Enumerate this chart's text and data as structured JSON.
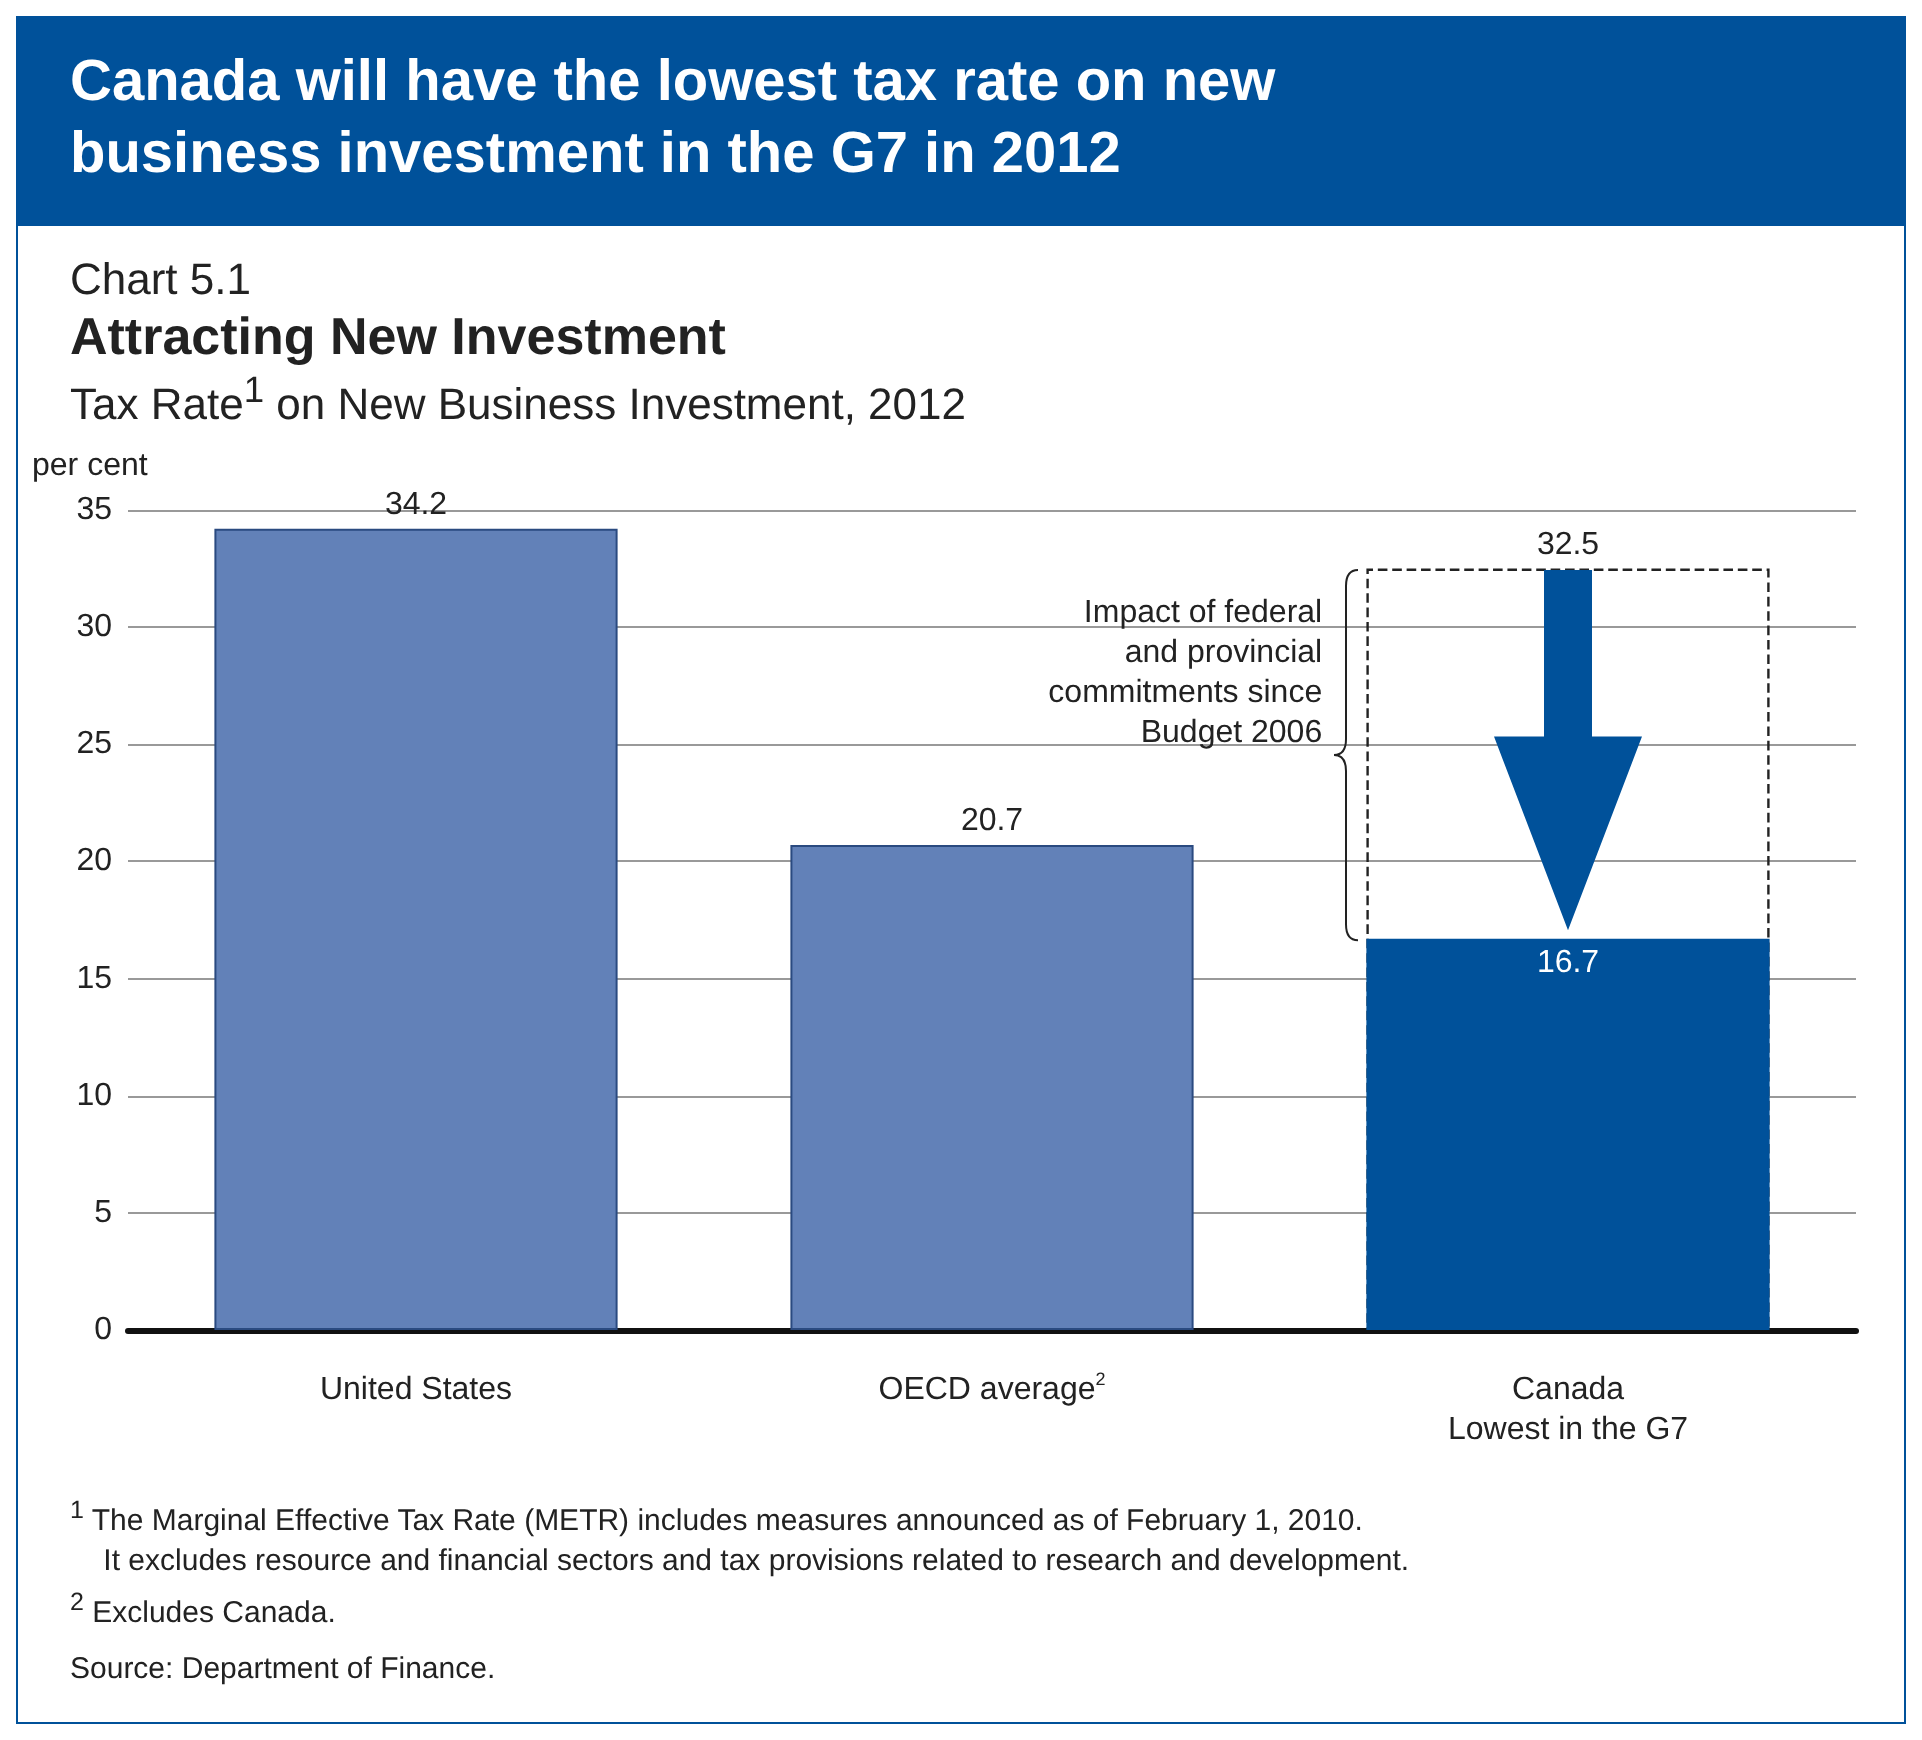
{
  "chart_data": {
    "type": "bar",
    "title": "Canada will have the lowest tax rate on new business investment in the G7 in 2012",
    "subtitle": "Chart 5.1\nAttracting New Investment\nTax Rate$^{1}$ on New Business Investment, 2012",
    "ylabel": "per cent",
    "categories": [
      "United States",
      "OECD average$^{2}$",
      "Canada\nLowest in the G7"
    ],
    "series": [
      {
        "values": [
          null,
          null,
          32.5
        ],
        "color": "#222222",
        "line_style": "dashed"
      },
      {
        "values": [
          34.2,
          20.7,
          16.7
        ],
        "colors": [
          "#6281b8",
          "#6281b8",
          "#00519a"
        ]
      }
    ],
    "data_labels": true,
    "ylim": [
      0,
      35
    ],
    "yticks": [
      0,
      5,
      10,
      15,
      20,
      25,
      30,
      35
    ],
    "grid": "y",
    "annotations": [
      "Impact of federal\nand provincial\ncommitments since\nBudget 2006",
      "$^{1}$ The Marginal Effective Tax Rate (METR) includes measures announced as of February 1, 2010.\n    It excludes resource and financial sectors and tax provisions related to research and development.",
      "$^{2}$ Excludes Canada.",
      "Source: Department of Finance."
    ]
  }
}
